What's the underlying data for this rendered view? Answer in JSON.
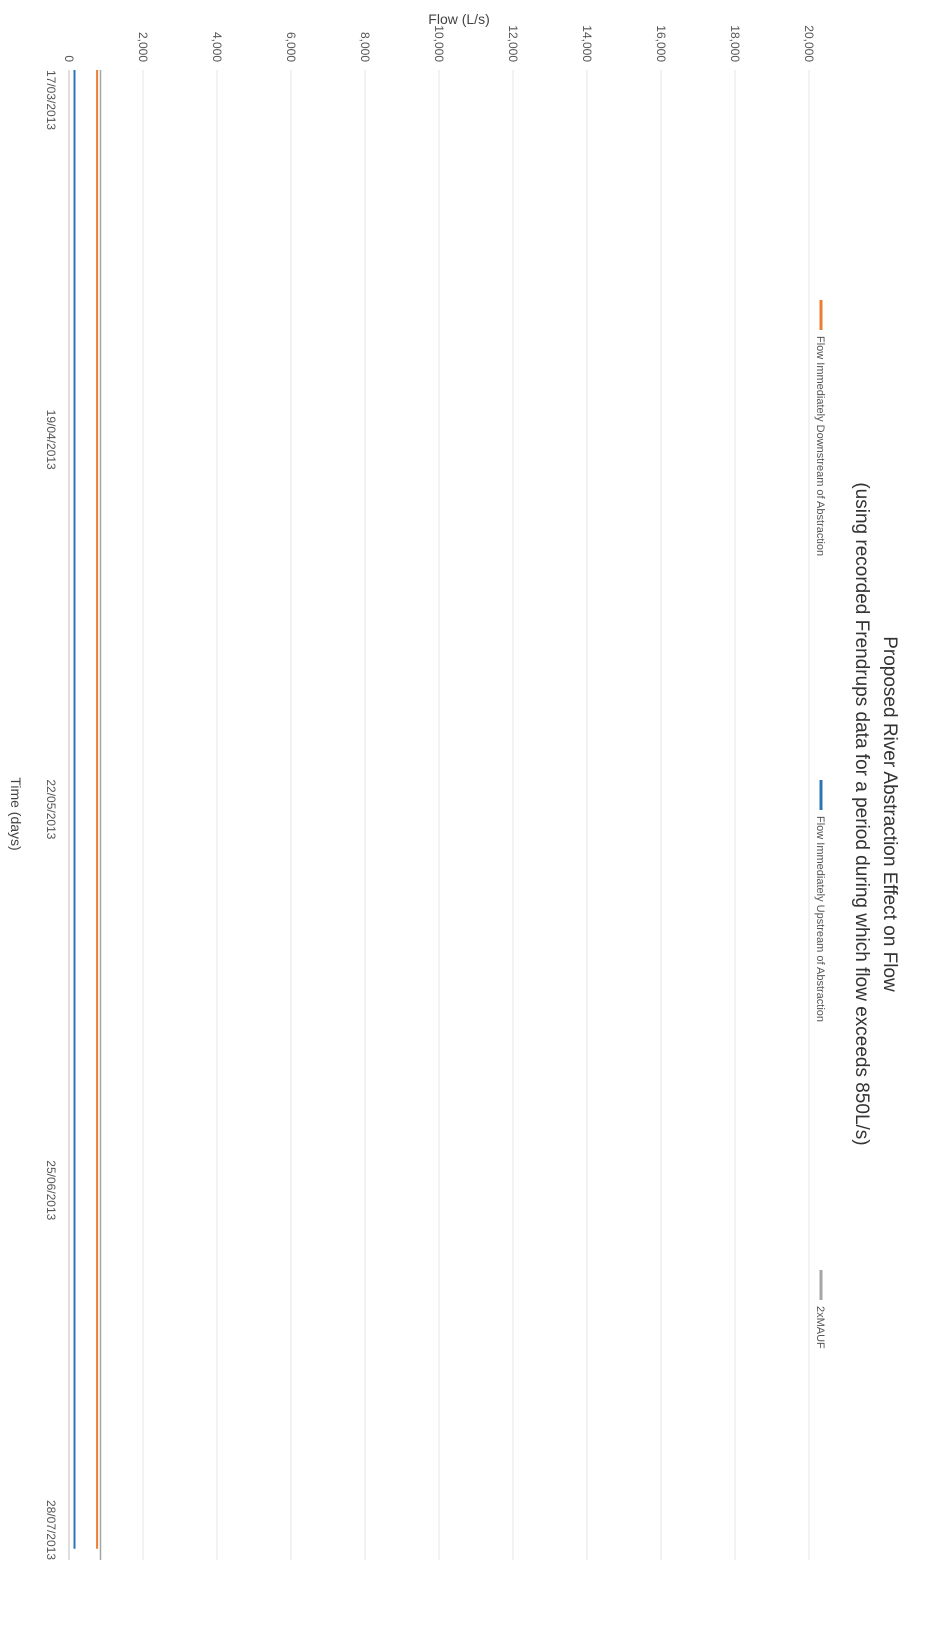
{
  "chart_data": {
    "type": "line",
    "title": "Proposed River Abstraction Effect on Flow",
    "subtitle": "(using recorded Frendrups data for a period during which flow exceeds 850L/s)",
    "xlabel": "Time (days)",
    "ylabel": "Flow (L/s)",
    "ylim": [
      0,
      20000
    ],
    "y_ticks": [
      "0",
      "2,000",
      "4,000",
      "6,000",
      "8,000",
      "10,000",
      "12,000",
      "14,000",
      "16,000",
      "18,000",
      "20,000"
    ],
    "x_ticks": [
      "17/03/2013",
      "19/04/2013",
      "22/05/2013",
      "25/06/2013",
      "28/07/2013"
    ],
    "x_tick_days": [
      0,
      33,
      66,
      100,
      133
    ],
    "grid": "vertical lines at each y tick",
    "legend": "top",
    "colors": {
      "downstream": "#ed7d31",
      "upstream": "#2e75b6",
      "mauf": "#a6a6a6"
    },
    "series": [
      {
        "name": "Flow Immediately Downstream of Abstraction",
        "color": "#ed7d31",
        "x": [
          0,
          2,
          4,
          6,
          8,
          10,
          12,
          14,
          16,
          18,
          20,
          22,
          24,
          26,
          28,
          30,
          32,
          34,
          36,
          37,
          38,
          40,
          42,
          44,
          46,
          48,
          50,
          52,
          54,
          56,
          58,
          59,
          60,
          61,
          62,
          64,
          66,
          68,
          70,
          72,
          74,
          76,
          78,
          80,
          82,
          84,
          86,
          88,
          90,
          92,
          94,
          96,
          98,
          100,
          102,
          104,
          106,
          108,
          110,
          112,
          114,
          116,
          118,
          120,
          122,
          124,
          126,
          128,
          130,
          132
        ],
        "values": [
          760,
          760,
          760,
          760,
          760,
          760,
          760,
          760,
          760,
          760,
          760,
          760,
          760,
          760,
          760,
          760,
          760,
          760,
          760,
          760,
          760,
          760,
          760,
          760,
          760,
          760,
          760,
          760,
          760,
          760,
          760,
          760,
          760,
          760,
          760,
          760,
          760,
          760,
          760,
          760,
          760,
          760,
          760,
          760,
          760,
          760,
          760,
          760,
          760,
          760,
          760,
          760,
          760,
          760,
          760,
          760,
          760,
          760,
          760,
          760,
          760,
          760,
          760,
          760,
          760,
          760,
          760,
          760,
          760,
          760
        ]
      },
      {
        "name": "Flow Immediately Upstream of Abstraction",
        "color": "#2e75b6",
        "x": [
          0,
          2,
          4,
          6,
          8,
          10,
          12,
          14,
          16,
          18,
          20,
          22,
          24,
          26,
          28,
          30,
          32,
          34,
          36,
          37,
          38,
          40,
          42,
          44,
          46,
          48,
          50,
          52,
          54,
          56,
          58,
          59,
          60,
          61,
          62,
          64,
          66,
          68,
          70,
          72,
          74,
          76,
          78,
          80,
          82,
          84,
          86,
          88,
          90,
          92,
          94,
          96,
          98,
          100,
          102,
          104,
          106,
          108,
          110,
          112,
          114,
          116,
          118,
          120,
          122,
          124,
          126,
          128,
          130,
          132
        ],
        "values": [
          150,
          150,
          150,
          150,
          150,
          150,
          150,
          150,
          150,
          150,
          150,
          150,
          150,
          150,
          150,
          150,
          150,
          150,
          150,
          150,
          150,
          150,
          150,
          150,
          150,
          150,
          150,
          150,
          150,
          150,
          150,
          150,
          150,
          150,
          150,
          150,
          150,
          150,
          150,
          150,
          150,
          150,
          150,
          150,
          150,
          150,
          150,
          150,
          150,
          150,
          150,
          150,
          150,
          150,
          150,
          150,
          150,
          150,
          150,
          150,
          150,
          150,
          150,
          150,
          150,
          150,
          150,
          150,
          150,
          150
        ]
      },
      {
        "name": "2xMAUF",
        "color": "#a6a6a6",
        "x": [
          0,
          133
        ],
        "values": [
          850,
          850
        ]
      }
    ]
  }
}
